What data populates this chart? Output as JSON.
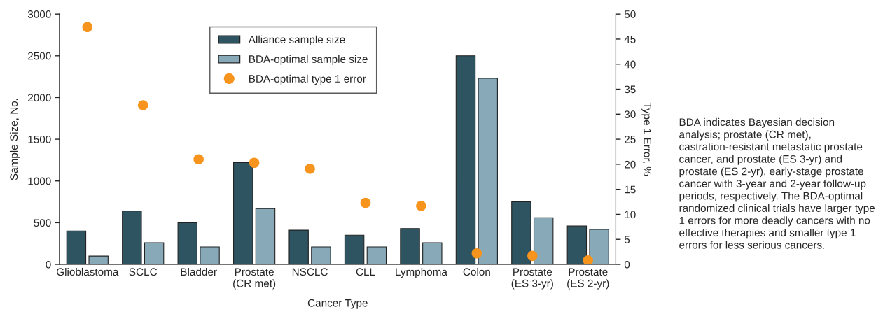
{
  "chart_data": {
    "type": "bar",
    "xlabel": "Cancer Type",
    "ylabel": "Sample Size, No.",
    "y2label": "Type 1 Error, %",
    "categories": [
      "Glioblastoma",
      "SCLC",
      "Bladder",
      "Prostate\n(CR met)",
      "NSCLC",
      "CLL",
      "Lymphoma",
      "Colon",
      "Prostate\n(ES 3-yr)",
      "Prostate\n(ES 2-yr)"
    ],
    "series": [
      {
        "name": "Alliance sample size",
        "color": "#2e5361",
        "values": [
          400,
          640,
          500,
          1220,
          410,
          350,
          430,
          2500,
          750,
          460
        ]
      },
      {
        "name": "BDA-optimal sample size",
        "color": "#87a9b8",
        "values": [
          100,
          260,
          210,
          670,
          210,
          210,
          260,
          2230,
          560,
          420
        ]
      },
      {
        "name": "BDA-optimal type 1 error",
        "color": "#f7941d",
        "type": "scatter",
        "axis": "y2",
        "marker": "circle",
        "values": [
          47.4,
          31.8,
          21.0,
          20.3,
          19.1,
          12.3,
          11.7,
          2.2,
          1.7,
          0.8
        ]
      }
    ],
    "ylim": [
      0,
      3000
    ],
    "yticks": [
      0,
      500,
      1000,
      1500,
      2000,
      2500,
      3000
    ],
    "y2lim": [
      0,
      50
    ],
    "y2ticks": [
      0,
      5,
      10,
      15,
      20,
      25,
      30,
      35,
      40,
      45,
      50
    ],
    "legend": "top",
    "grid": false,
    "annotations": [
      "BDA indicates Bayesian decision analysis; prostate (CR met), castration-resistant metastatic prostate cancer, and prostate (ES 3-yr) and prostate (ES 2-yr), early-stage prostate cancer with 3-year and 2-year follow-up periods, respectively. The BDA-optimal randomized clinical trials have larger type 1 errors for more deadly cancers with no effective therapies and smaller type 1 errors for less serious cancers."
    ]
  }
}
